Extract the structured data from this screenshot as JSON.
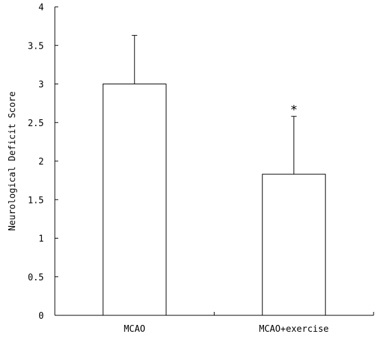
{
  "chart_data": {
    "type": "bar",
    "categories": [
      "MCAO",
      "MCAO+exercise"
    ],
    "values": [
      3.0,
      1.83
    ],
    "error_upper": [
      0.63,
      0.75
    ],
    "ylabel": "Neurological Deficit Score",
    "xlabel": "",
    "ylim": [
      0,
      4
    ],
    "yticks": [
      "0",
      "0.5",
      "1",
      "1.5",
      "2",
      "2.5",
      "3",
      "3.5",
      "4"
    ],
    "annotations": [
      {
        "category_index": 1,
        "text": "*"
      }
    ],
    "grid": false,
    "legend": "none",
    "colors": {
      "bar_fill": "#ffffff",
      "stroke": "#000000"
    }
  }
}
